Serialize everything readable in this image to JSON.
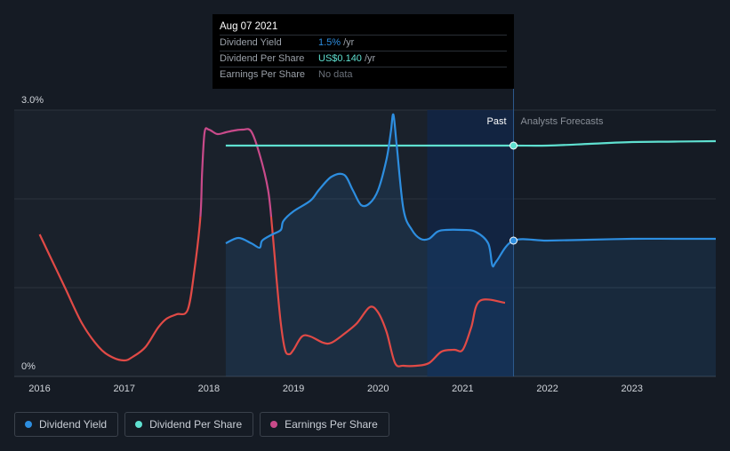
{
  "tooltip": {
    "date": "Aug 07 2021",
    "rows": [
      {
        "label": "Dividend Yield",
        "value": "1.5%",
        "unit": "/yr",
        "color": "#2d8ee0"
      },
      {
        "label": "Dividend Per Share",
        "value": "US$0.140",
        "unit": "/yr",
        "color": "#5fe0d0"
      },
      {
        "label": "Earnings Per Share",
        "value": "No data",
        "unit": "",
        "color": "#6b717a"
      }
    ]
  },
  "legend": [
    {
      "label": "Dividend Yield",
      "color": "#2d8ee0"
    },
    {
      "label": "Dividend Per Share",
      "color": "#5fe0d0"
    },
    {
      "label": "Earnings Per Share",
      "color": "#c94a8a"
    }
  ],
  "chart_data": {
    "type": "line",
    "ylim": [
      0,
      3.0
    ],
    "y_tick_labels": [
      "3.0%",
      "0%"
    ],
    "x_tick_labels": [
      "2016",
      "2017",
      "2018",
      "2019",
      "2020",
      "2021",
      "2022",
      "2023"
    ],
    "x_ticks": [
      2016,
      2017,
      2018,
      2019,
      2020,
      2021,
      2022,
      2023
    ],
    "xlim": [
      2015.7,
      2023.99
    ],
    "past_label": "Past",
    "forecast_label": "Analysts Forecasts",
    "highlight_range": [
      2020.58,
      2021.6
    ],
    "forecast_start": 2021.6,
    "colors": {
      "yield": "#2d8ee0",
      "dps": "#5fe0d0",
      "eps_positive": "#c94a8a",
      "eps_negative": "#e14a46"
    },
    "series": [
      {
        "name": "Dividend Yield",
        "unit": "%",
        "x": [
          2018.2,
          2018.35,
          2018.5,
          2018.6,
          2018.63,
          2018.75,
          2018.85,
          2018.88,
          2019.0,
          2019.2,
          2019.3,
          2019.45,
          2019.6,
          2019.7,
          2019.8,
          2019.9,
          2020.0,
          2020.1,
          2020.15,
          2020.18,
          2020.22,
          2020.3,
          2020.4,
          2020.5,
          2020.6,
          2020.7,
          2020.8,
          2021.0,
          2021.15,
          2021.3,
          2021.35,
          2021.4,
          2021.6,
          2022.0,
          2022.5,
          2023.0,
          2023.5,
          2023.99
        ],
        "values": [
          1.5,
          1.56,
          1.5,
          1.45,
          1.53,
          1.6,
          1.65,
          1.75,
          1.86,
          1.98,
          2.1,
          2.25,
          2.27,
          2.1,
          1.93,
          1.95,
          2.1,
          2.45,
          2.75,
          2.95,
          2.6,
          1.88,
          1.65,
          1.55,
          1.55,
          1.63,
          1.65,
          1.65,
          1.63,
          1.5,
          1.25,
          1.3,
          1.53,
          1.53,
          1.54,
          1.55,
          1.55,
          1.55
        ]
      },
      {
        "name": "Dividend Per Share",
        "unit": "US$",
        "x": [
          2018.2,
          2019.0,
          2020.0,
          2021.0,
          2021.6,
          2022.0,
          2022.5,
          2023.0,
          2023.5,
          2023.99
        ],
        "values": [
          2.6,
          2.6,
          2.6,
          2.6,
          2.6,
          2.6,
          2.62,
          2.64,
          2.645,
          2.65
        ]
      },
      {
        "name": "Earnings Per Share",
        "x": [
          2016.0,
          2016.15,
          2016.3,
          2016.5,
          2016.7,
          2016.85,
          2017.0,
          2017.1,
          2017.25,
          2017.4,
          2017.5,
          2017.62,
          2017.75,
          2017.83,
          2017.9,
          2017.92,
          2017.95,
          2018.0,
          2018.1,
          2018.2,
          2018.3,
          2018.4,
          2018.5,
          2018.6,
          2018.7,
          2018.75,
          2018.8,
          2018.85,
          2018.9,
          2018.95,
          2019.0,
          2019.1,
          2019.2,
          2019.35,
          2019.45,
          2019.6,
          2019.75,
          2019.9,
          2020.0,
          2020.1,
          2020.2,
          2020.3,
          2020.45,
          2020.6,
          2020.75,
          2020.9,
          2021.0,
          2021.1,
          2021.2,
          2021.5
        ],
        "values": [
          1.6,
          1.3,
          1.0,
          0.6,
          0.33,
          0.22,
          0.18,
          0.22,
          0.33,
          0.55,
          0.65,
          0.7,
          0.75,
          1.2,
          1.8,
          2.3,
          2.75,
          2.78,
          2.73,
          2.75,
          2.77,
          2.78,
          2.76,
          2.5,
          2.1,
          1.65,
          1.1,
          0.6,
          0.3,
          0.25,
          0.3,
          0.45,
          0.45,
          0.38,
          0.38,
          0.48,
          0.6,
          0.78,
          0.72,
          0.5,
          0.15,
          0.12,
          0.12,
          0.15,
          0.28,
          0.3,
          0.3,
          0.55,
          0.85,
          0.83
        ]
      }
    ]
  }
}
